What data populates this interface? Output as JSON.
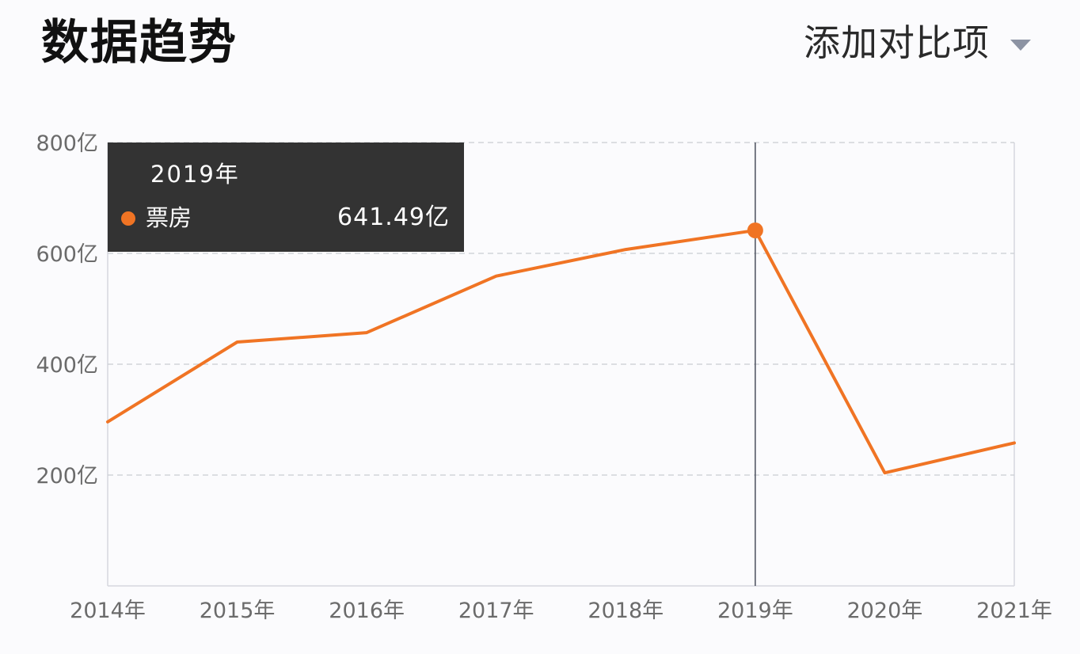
{
  "header": {
    "title": "数据趋势",
    "compare_label": "添加对比项",
    "compare_icon": "caret-down-icon"
  },
  "tooltip": {
    "title": "2019年",
    "series_name": "票房",
    "value_text": "641.49亿",
    "color": "#f07424"
  },
  "chart_data": {
    "type": "line",
    "categories": [
      "2014年",
      "2015年",
      "2016年",
      "2017年",
      "2018年",
      "2019年",
      "2020年",
      "2021年"
    ],
    "series": [
      {
        "name": "票房",
        "values": [
          296,
          440,
          457,
          559,
          607,
          641.49,
          204,
          258
        ],
        "color": "#f07424"
      }
    ],
    "y_ticks": [
      {
        "value": 200,
        "label": "200亿"
      },
      {
        "value": 400,
        "label": "400亿"
      },
      {
        "value": 600,
        "label": "600亿"
      },
      {
        "value": 800,
        "label": "800亿"
      }
    ],
    "ylim": [
      0,
      800
    ],
    "grid": "horizontal-dashed",
    "highlight_category": "2019年"
  }
}
